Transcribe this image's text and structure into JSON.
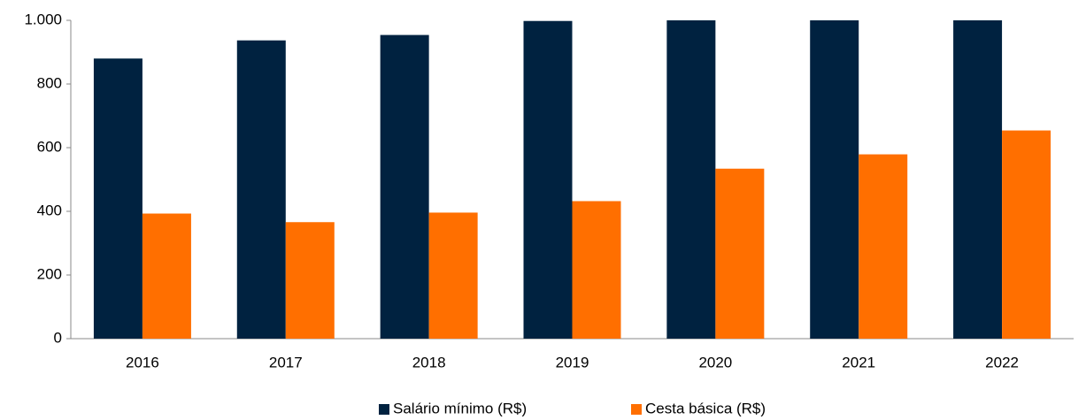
{
  "chart_data": {
    "type": "bar",
    "categories": [
      "2016",
      "2017",
      "2018",
      "2019",
      "2020",
      "2021",
      "2022"
    ],
    "series": [
      {
        "name": "Salário mínimo (R$)",
        "color": "#002240",
        "values": [
          880,
          937,
          954,
          998,
          1000,
          1000,
          1000
        ]
      },
      {
        "name": "Cesta básica (R$)",
        "color": "#ff6f00",
        "values": [
          393,
          366,
          396,
          432,
          534,
          579,
          654
        ]
      }
    ],
    "ylim": [
      0,
      1000
    ],
    "yticks": [
      0,
      200,
      400,
      600,
      800,
      {
        "value": 1000,
        "label": "1.000"
      }
    ],
    "grid": false,
    "legend": "bottom"
  }
}
